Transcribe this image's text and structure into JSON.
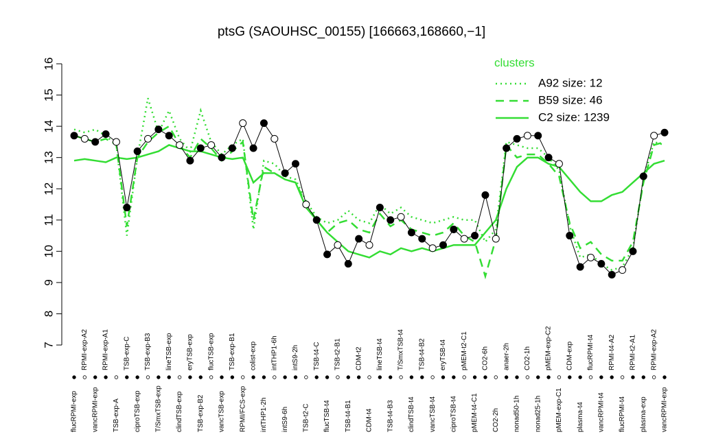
{
  "chart_data": {
    "type": "line",
    "title": "ptsG (SAOUHSC_00155) [166663,168660,−1]",
    "categories": [
      "flucRPMI-exp",
      "RPMI-exp-A2",
      "vancRPMI-exp",
      "RPMI-exp-A1",
      "TSB-exp-A",
      "TSB-exp-C",
      "ciproTSB-exp",
      "TSB-exp-B3",
      "T/SmxTSB-exp",
      "lineTSB-exp",
      "clindTSB-exp",
      "eryTSB-exp",
      "TSB-exp-B2",
      "flucTSB-exp",
      "vancTSB-exp",
      "TSB-exp-B1",
      "RPMI/FCS-exp",
      "colist-exp",
      "intTHP1-2h",
      "intTHP1-6h",
      "intS9-6h",
      "intS9-2h",
      "TSB-t2-C",
      "TSB-t4-C",
      "flucTSB-t4",
      "TSB-t2-B1",
      "TSB-t4-B1",
      "CDM-t2",
      "CDM-t4",
      "lineTSB-t4",
      "TSB-t4-B3",
      "T/SmxTSB-t4",
      "clindTSB-t4",
      "TSB-t4-B2",
      "vancTSB-t4",
      "eryTSB-t4",
      "ciproTSB-t4",
      "pMEM-t2-C1",
      "pMEM-t4-C1",
      "CO2-6h",
      "CO2-2h",
      "anaer-2h",
      "nonad50-1h",
      "CO2-1h",
      "nonad25-1h",
      "pMEM-exp-C2",
      "pMEM-exp-C1",
      "CDM-exp",
      "plasma-t4",
      "flucRPMI-t4",
      "vancRPMI-t4",
      "RPMI-t4-A2",
      "flucRPMI-t4",
      "RPMI-t2-A1",
      "plasma-exp",
      "RPMI-exp-A2",
      "vancRPMI-exp"
    ],
    "values": [
      13.7,
      13.6,
      13.5,
      13.75,
      13.5,
      11.4,
      13.2,
      13.6,
      13.9,
      13.7,
      13.4,
      12.9,
      13.3,
      13.4,
      13.0,
      13.3,
      14.1,
      13.3,
      14.1,
      13.6,
      12.5,
      12.8,
      11.5,
      11.0,
      9.9,
      10.2,
      9.6,
      10.4,
      10.2,
      11.4,
      11.0,
      11.1,
      10.6,
      10.4,
      10.1,
      10.2,
      10.7,
      10.4,
      10.5,
      11.8,
      10.4,
      13.3,
      13.6,
      13.7,
      13.7,
      13.0,
      12.8,
      10.5,
      9.5,
      9.8,
      9.6,
      9.25,
      9.4,
      10.0,
      12.4,
      13.7,
      13.8
    ],
    "color": "#000000",
    "series": [
      {
        "name": "A92 size: 12",
        "color": "#33dd33",
        "style": "dotted",
        "values": [
          13.9,
          13.8,
          13.9,
          13.7,
          13.4,
          10.5,
          13.0,
          14.9,
          13.8,
          14.5,
          13.6,
          13.2,
          14.5,
          13.5,
          13.1,
          13.4,
          13.6,
          10.7,
          12.9,
          12.8,
          12.4,
          12.3,
          11.6,
          11.1,
          10.9,
          11.0,
          11.3,
          11.0,
          10.9,
          11.5,
          11.2,
          11.4,
          11.1,
          11.0,
          10.9,
          11.0,
          11.1,
          11.0,
          11.0,
          10.3,
          10.7,
          13.5,
          13.4,
          13.3,
          13.3,
          13.0,
          12.6,
          10.8,
          9.8,
          9.9,
          9.6,
          9.4,
          9.5,
          10.1,
          12.3,
          13.5,
          13.4
        ]
      },
      {
        "name": "B59 size: 46",
        "color": "#33dd33",
        "style": "dashed",
        "values": [
          13.7,
          13.6,
          13.5,
          13.6,
          13.4,
          10.8,
          13.0,
          13.5,
          13.8,
          14.0,
          13.4,
          13.0,
          13.6,
          13.3,
          12.9,
          13.2,
          13.5,
          11.0,
          12.7,
          12.5,
          12.3,
          12.2,
          11.5,
          11.0,
          10.6,
          10.9,
          11.0,
          10.7,
          10.6,
          11.2,
          10.8,
          11.0,
          10.7,
          10.6,
          10.5,
          10.6,
          10.9,
          10.5,
          10.3,
          9.2,
          10.4,
          13.4,
          13.0,
          13.1,
          13.1,
          12.8,
          12.4,
          10.9,
          10.1,
          10.3,
          9.9,
          9.7,
          9.7,
          10.3,
          12.2,
          13.4,
          13.5
        ]
      },
      {
        "name": "C2 size: 1239",
        "color": "#33dd33",
        "style": "solid",
        "values": [
          12.9,
          12.95,
          12.9,
          12.85,
          13.0,
          12.95,
          13.0,
          13.1,
          13.2,
          13.4,
          13.3,
          13.2,
          13.2,
          13.1,
          13.0,
          12.95,
          13.0,
          12.2,
          12.5,
          12.5,
          12.3,
          12.2,
          11.4,
          11.0,
          10.6,
          10.3,
          10.0,
          9.9,
          9.8,
          10.0,
          9.9,
          10.1,
          10.0,
          10.1,
          10.0,
          10.1,
          10.2,
          10.2,
          10.2,
          10.6,
          11.0,
          12.0,
          12.7,
          13.0,
          13.0,
          12.8,
          12.7,
          12.3,
          11.9,
          11.6,
          11.6,
          11.8,
          11.9,
          12.2,
          12.5,
          12.8,
          12.9
        ]
      }
    ],
    "legend_title": "clusters",
    "ylim": [
      7,
      16
    ],
    "yticks": [
      7,
      8,
      9,
      10,
      11,
      12,
      13,
      14,
      15,
      16
    ]
  }
}
